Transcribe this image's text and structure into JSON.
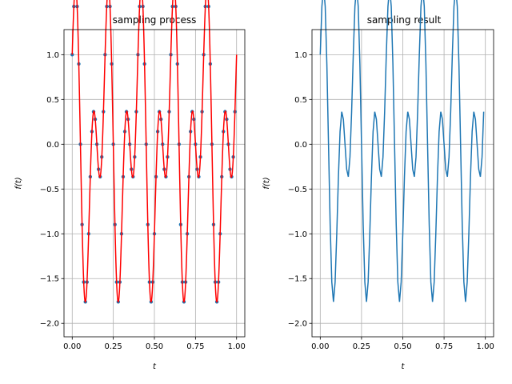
{
  "chart_data": [
    {
      "type": "line",
      "title": "sampling process",
      "xlabel": "t",
      "ylabel": "f(t)",
      "xlim": [
        -0.05,
        1.05
      ],
      "ylim": [
        -2.15,
        1.28
      ],
      "xticks": [
        0.0,
        0.25,
        0.5,
        0.75,
        1.0
      ],
      "xtick_labels": [
        "0.00",
        "0.25",
        "0.50",
        "0.75",
        "1.00"
      ],
      "yticks": [
        -2.0,
        -1.5,
        -1.0,
        -0.5,
        0.0,
        0.5,
        1.0
      ],
      "ytick_labels": [
        "−2.0",
        "−1.5",
        "−1.0",
        "−0.5",
        "0.0",
        "0.5",
        "1.0"
      ],
      "grid": true,
      "legend": "none",
      "signal": {
        "formula": "cos(2*pi*5*t) + sin(2*pi*10*t)",
        "color": "#ff0000",
        "t_start": 0.0,
        "t_end": 1.0
      },
      "samples": {
        "color": "#1f77b4",
        "t_start": 0.0,
        "t_end": 0.99,
        "spacing": 0.01
      }
    },
    {
      "type": "line",
      "title": "sampling result",
      "xlabel": "t",
      "ylabel": "f(t)",
      "xlim": [
        -0.05,
        1.05
      ],
      "ylim": [
        -2.15,
        1.28
      ],
      "xticks": [
        0.0,
        0.25,
        0.5,
        0.75,
        1.0
      ],
      "xtick_labels": [
        "0.00",
        "0.25",
        "0.50",
        "0.75",
        "1.00"
      ],
      "yticks": [
        -2.0,
        -1.5,
        -1.0,
        -0.5,
        0.0,
        0.5,
        1.0
      ],
      "ytick_labels": [
        "−2.0",
        "−1.5",
        "−1.0",
        "−0.5",
        "0.0",
        "0.5",
        "1.0"
      ],
      "grid": true,
      "legend": "none",
      "series": {
        "color": "#1f77b4",
        "t_start": 0.0,
        "t_end": 0.99,
        "spacing": 0.01
      }
    }
  ]
}
